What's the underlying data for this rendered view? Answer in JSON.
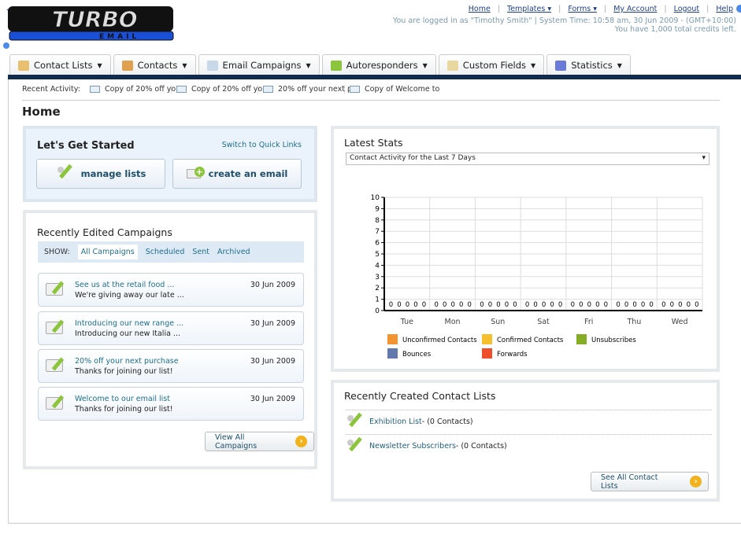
{
  "logo": {
    "text": "TURBO",
    "sub": "EMAIL"
  },
  "toplinks": [
    {
      "label": "Home"
    },
    {
      "label": "Templates ▾"
    },
    {
      "label": "Forms ▾"
    },
    {
      "label": "My Account"
    },
    {
      "label": "Logout"
    },
    {
      "label": "Help"
    }
  ],
  "login_info": "You are logged in as \"Timothy Smith\" | System Time: 10:58 am, 30 Jun 2009 - (GMT+10:00)",
  "credits": "You have 1,000 total credits left.",
  "nav": [
    {
      "label": "Contact Lists",
      "icon": "contact-lists-icon",
      "color": "#e8c070"
    },
    {
      "label": "Contacts",
      "icon": "contacts-icon",
      "color": "#e0a050"
    },
    {
      "label": "Email Campaigns",
      "icon": "email-icon",
      "color": "#c8d8e8"
    },
    {
      "label": "Autoresponders",
      "icon": "autoresponder-icon",
      "color": "#8cc43c"
    },
    {
      "label": "Custom Fields",
      "icon": "custom-fields-icon",
      "color": "#e8d8a0"
    },
    {
      "label": "Statistics",
      "icon": "statistics-icon",
      "color": "#6a7ad8"
    }
  ],
  "recent": {
    "label": "Recent Activity:",
    "items": [
      "Copy of 20% off yo",
      "Copy of 20% off yo",
      "20% off your next p",
      "Copy of Welcome to"
    ]
  },
  "page_title": "Home",
  "start": {
    "title": "Let's Get Started",
    "switch": "Switch to Quick Links",
    "manage": "manage lists",
    "create": "create an email"
  },
  "campaigns": {
    "title": "Recently Edited Campaigns",
    "show": "SHOW:",
    "filters": [
      "All Campaigns",
      "Scheduled",
      "Sent",
      "Archived"
    ],
    "items": [
      {
        "title": "See us at the retail food ...",
        "sub": "We're giving away our late ...",
        "date": "30 Jun 2009"
      },
      {
        "title": "Introducing our new range ...",
        "sub": "Introducing our new Italia ...",
        "date": "30 Jun 2009"
      },
      {
        "title": "20% off your next purchase",
        "sub": "Thanks for joining our list!",
        "date": "30 Jun 2009"
      },
      {
        "title": "Welcome to our email list",
        "sub": "Thanks for joining our list!",
        "date": "30 Jun 2009"
      }
    ],
    "view_all": "View All Campaigns"
  },
  "stats": {
    "title": "Latest Stats",
    "select": "Contact Activity for the Last 7 Days"
  },
  "chart_data": {
    "type": "bar",
    "categories": [
      "Tue",
      "Mon",
      "Sun",
      "Sat",
      "Fri",
      "Thu",
      "Wed"
    ],
    "ylim": [
      0,
      10
    ],
    "yticks": [
      0,
      1,
      2,
      3,
      4,
      5,
      6,
      7,
      8,
      9,
      10
    ],
    "grid": true,
    "legend": "bottom",
    "series": [
      {
        "name": "Unconfirmed Contacts",
        "color": "#f39433",
        "values": [
          0,
          0,
          0,
          0,
          0,
          0,
          0
        ]
      },
      {
        "name": "Confirmed Contacts",
        "color": "#f5bf2d",
        "values": [
          0,
          0,
          0,
          0,
          0,
          0,
          0
        ]
      },
      {
        "name": "Unsubscribes",
        "color": "#85ad25",
        "values": [
          0,
          0,
          0,
          0,
          0,
          0,
          0
        ]
      },
      {
        "name": "Bounces",
        "color": "#6379ad",
        "values": [
          0,
          0,
          0,
          0,
          0,
          0,
          0
        ]
      },
      {
        "name": "Forwards",
        "color": "#ee4f2a",
        "values": [
          0,
          0,
          0,
          0,
          0,
          0,
          0
        ]
      }
    ]
  },
  "lists": {
    "title": "Recently Created Contact Lists",
    "items": [
      {
        "name": "Exhibition List",
        "count": " - (0 Contacts)"
      },
      {
        "name": "Newsletter Subscribers",
        "count": " - (0 Contacts)"
      }
    ],
    "see_all": "See All Contact Lists"
  }
}
